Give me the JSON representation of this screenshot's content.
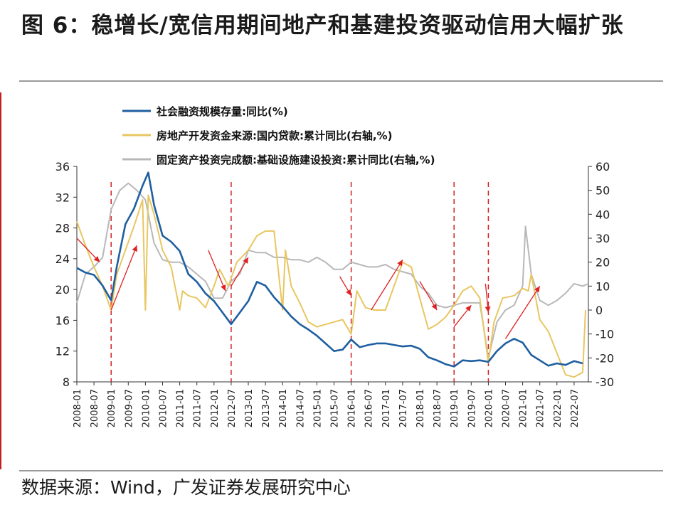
{
  "title": "图 6：稳增长/宽信用期间地产和基建投资驱动信用大幅扩张",
  "source": "数据来源：Wind，广发证券发展研究中心",
  "chart_data": {
    "type": "line",
    "x_labels": [
      "2008-01",
      "2008-07",
      "2009-01",
      "2009-07",
      "2010-01",
      "2010-07",
      "2011-01",
      "2011-07",
      "2012-01",
      "2012-07",
      "2013-01",
      "2013-07",
      "2014-01",
      "2014-07",
      "2015-01",
      "2015-07",
      "2016-01",
      "2016-07",
      "2017-01",
      "2017-07",
      "2018-01",
      "2018-07",
      "2019-01",
      "2019-07",
      "2020-01",
      "2020-07",
      "2021-01",
      "2021-07",
      "2022-01",
      "2022-07"
    ],
    "left_axis": {
      "min": 8,
      "max": 36,
      "ticks": [
        8,
        12,
        16,
        20,
        24,
        28,
        32,
        36
      ]
    },
    "right_axis": {
      "min": -30,
      "max": 60,
      "ticks": [
        -30,
        -20,
        -10,
        0,
        10,
        20,
        30,
        40,
        50,
        60
      ]
    },
    "legend_position": "top",
    "grid": false,
    "series": [
      {
        "name": "社会融资规模存量:同比(%)",
        "axis": "left",
        "color": "#1f5fa0",
        "points": [
          [
            "2008-01",
            22.8
          ],
          [
            "2008-04",
            22.2
          ],
          [
            "2008-07",
            21.9
          ],
          [
            "2008-10",
            20.5
          ],
          [
            "2009-01",
            18.6
          ],
          [
            "2009-03",
            23
          ],
          [
            "2009-06",
            28.5
          ],
          [
            "2009-09",
            30.5
          ],
          [
            "2009-12",
            33.5
          ],
          [
            "2010-02",
            35.2
          ],
          [
            "2010-04",
            31
          ],
          [
            "2010-07",
            27
          ],
          [
            "2010-10",
            26.2
          ],
          [
            "2011-01",
            25
          ],
          [
            "2011-04",
            22
          ],
          [
            "2011-07",
            21
          ],
          [
            "2011-10",
            19.5
          ],
          [
            "2012-01",
            18.5
          ],
          [
            "2012-04",
            17
          ],
          [
            "2012-07",
            15.5
          ],
          [
            "2012-10",
            17
          ],
          [
            "2013-01",
            18.5
          ],
          [
            "2013-04",
            21
          ],
          [
            "2013-07",
            20.5
          ],
          [
            "2013-10",
            19
          ],
          [
            "2014-01",
            17.8
          ],
          [
            "2014-04",
            16.5
          ],
          [
            "2014-07",
            15.5
          ],
          [
            "2014-10",
            14.8
          ],
          [
            "2015-01",
            14
          ],
          [
            "2015-04",
            13
          ],
          [
            "2015-07",
            12
          ],
          [
            "2015-10",
            12.2
          ],
          [
            "2016-01",
            13.5
          ],
          [
            "2016-04",
            12.5
          ],
          [
            "2016-07",
            12.8
          ],
          [
            "2016-10",
            13
          ],
          [
            "2017-01",
            13
          ],
          [
            "2017-04",
            12.8
          ],
          [
            "2017-07",
            12.6
          ],
          [
            "2017-10",
            12.7
          ],
          [
            "2018-01",
            12.3
          ],
          [
            "2018-04",
            11.2
          ],
          [
            "2018-07",
            10.8
          ],
          [
            "2018-10",
            10.3
          ],
          [
            "2019-01",
            10
          ],
          [
            "2019-04",
            10.8
          ],
          [
            "2019-07",
            10.7
          ],
          [
            "2019-10",
            10.8
          ],
          [
            "2020-01",
            10.6
          ],
          [
            "2020-04",
            12
          ],
          [
            "2020-07",
            13
          ],
          [
            "2020-10",
            13.6
          ],
          [
            "2021-01",
            13.1
          ],
          [
            "2021-04",
            11.5
          ],
          [
            "2021-07",
            10.8
          ],
          [
            "2021-10",
            10.1
          ],
          [
            "2022-01",
            10.4
          ],
          [
            "2022-04",
            10.2
          ],
          [
            "2022-07",
            10.7
          ],
          [
            "2022-10",
            10.4
          ]
        ]
      },
      {
        "name": "房地产开发资金来源:国内贷款:累计同比(右轴,%)",
        "axis": "right",
        "color": "#e8c660",
        "points": [
          [
            "2008-01",
            37
          ],
          [
            "2008-04",
            27
          ],
          [
            "2008-07",
            18
          ],
          [
            "2008-10",
            10
          ],
          [
            "2009-01",
            0
          ],
          [
            "2009-03",
            15
          ],
          [
            "2009-06",
            25
          ],
          [
            "2009-09",
            35
          ],
          [
            "2009-12",
            46
          ],
          [
            "2010-01",
            0
          ],
          [
            "2010-02",
            48
          ],
          [
            "2010-04",
            40
          ],
          [
            "2010-07",
            25
          ],
          [
            "2010-10",
            18
          ],
          [
            "2011-01",
            0
          ],
          [
            "2011-02",
            8
          ],
          [
            "2011-04",
            6
          ],
          [
            "2011-07",
            5
          ],
          [
            "2011-10",
            1
          ],
          [
            "2012-01",
            10
          ],
          [
            "2012-03",
            17
          ],
          [
            "2012-06",
            10
          ],
          [
            "2012-09",
            20
          ],
          [
            "2013-01",
            25
          ],
          [
            "2013-04",
            31
          ],
          [
            "2013-07",
            33
          ],
          [
            "2013-10",
            33
          ],
          [
            "2014-01",
            0
          ],
          [
            "2014-02",
            25
          ],
          [
            "2014-04",
            10
          ],
          [
            "2014-07",
            3
          ],
          [
            "2014-10",
            -5
          ],
          [
            "2015-01",
            -7
          ],
          [
            "2015-04",
            -6
          ],
          [
            "2015-07",
            -5
          ],
          [
            "2015-10",
            -4
          ],
          [
            "2016-01",
            -10
          ],
          [
            "2016-03",
            8
          ],
          [
            "2016-06",
            1
          ],
          [
            "2016-09",
            0
          ],
          [
            "2017-01",
            0
          ],
          [
            "2017-04",
            10
          ],
          [
            "2017-07",
            20
          ],
          [
            "2017-10",
            18
          ],
          [
            "2018-01",
            5
          ],
          [
            "2018-04",
            -8
          ],
          [
            "2018-07",
            -6
          ],
          [
            "2018-10",
            -3
          ],
          [
            "2019-01",
            2
          ],
          [
            "2019-04",
            8
          ],
          [
            "2019-07",
            10
          ],
          [
            "2019-10",
            5
          ],
          [
            "2020-01",
            -22
          ],
          [
            "2020-03",
            -5
          ],
          [
            "2020-06",
            5
          ],
          [
            "2020-10",
            6
          ],
          [
            "2021-01",
            9
          ],
          [
            "2021-03",
            8
          ],
          [
            "2021-04",
            15
          ],
          [
            "2021-07",
            -4
          ],
          [
            "2021-10",
            -9
          ],
          [
            "2022-01",
            -18
          ],
          [
            "2022-04",
            -27
          ],
          [
            "2022-07",
            -28
          ],
          [
            "2022-10",
            -26
          ],
          [
            "2022-11",
            0
          ]
        ]
      },
      {
        "name": "固定资产投资完成额:基础设施建设投资:累计同比(右轴,%)",
        "axis": "right",
        "color": "#b8b8b8",
        "points": [
          [
            "2008-01",
            3
          ],
          [
            "2008-04",
            15
          ],
          [
            "2008-07",
            18
          ],
          [
            "2008-10",
            22
          ],
          [
            "2009-01",
            42
          ],
          [
            "2009-04",
            50
          ],
          [
            "2009-07",
            53
          ],
          [
            "2009-10",
            50
          ],
          [
            "2010-01",
            46
          ],
          [
            "2010-04",
            28
          ],
          [
            "2010-07",
            21
          ],
          [
            "2010-10",
            20
          ],
          [
            "2011-01",
            20
          ],
          [
            "2011-04",
            18
          ],
          [
            "2011-07",
            15
          ],
          [
            "2011-10",
            12
          ],
          [
            "2012-01",
            5
          ],
          [
            "2012-04",
            5
          ],
          [
            "2012-07",
            12
          ],
          [
            "2012-10",
            15
          ],
          [
            "2013-01",
            25
          ],
          [
            "2013-04",
            24
          ],
          [
            "2013-07",
            24
          ],
          [
            "2013-10",
            22
          ],
          [
            "2014-01",
            22
          ],
          [
            "2014-04",
            21
          ],
          [
            "2014-07",
            21
          ],
          [
            "2014-10",
            20
          ],
          [
            "2015-01",
            22
          ],
          [
            "2015-04",
            20
          ],
          [
            "2015-07",
            17
          ],
          [
            "2015-10",
            17
          ],
          [
            "2016-01",
            20
          ],
          [
            "2016-04",
            19
          ],
          [
            "2016-07",
            18
          ],
          [
            "2016-10",
            18
          ],
          [
            "2017-01",
            19
          ],
          [
            "2017-04",
            17
          ],
          [
            "2017-07",
            16
          ],
          [
            "2017-10",
            15
          ],
          [
            "2018-01",
            10
          ],
          [
            "2018-04",
            7
          ],
          [
            "2018-07",
            2
          ],
          [
            "2018-10",
            1
          ],
          [
            "2019-01",
            2
          ],
          [
            "2019-04",
            3
          ],
          [
            "2019-07",
            3
          ],
          [
            "2019-10",
            3
          ],
          [
            "2020-01",
            -20
          ],
          [
            "2020-04",
            -5
          ],
          [
            "2020-07",
            0
          ],
          [
            "2020-10",
            2
          ],
          [
            "2021-01",
            10
          ],
          [
            "2021-02",
            35
          ],
          [
            "2021-04",
            15
          ],
          [
            "2021-07",
            4
          ],
          [
            "2021-10",
            2
          ],
          [
            "2022-01",
            4
          ],
          [
            "2022-04",
            7
          ],
          [
            "2022-07",
            11
          ],
          [
            "2022-10",
            10
          ],
          [
            "2022-12",
            11
          ]
        ]
      }
    ],
    "annotations": {
      "vertical_lines_at": [
        "2009-01",
        "2012-07",
        "2016-01",
        "2019-01",
        "2020-01"
      ],
      "vertical_line_color": "#d02020",
      "arrow_color": "#e02020",
      "arrows": [
        {
          "from": [
            "2008-01",
            30
          ],
          "to": [
            "2008-09",
            20
          ]
        },
        {
          "from": [
            "2009-01",
            0
          ],
          "to": [
            "2009-10",
            27
          ]
        },
        {
          "from": [
            "2011-11",
            25
          ],
          "to": [
            "2012-05",
            8
          ]
        },
        {
          "from": [
            "2012-07",
            10
          ],
          "to": [
            "2013-01",
            22
          ]
        },
        {
          "from": [
            "2015-09",
            14
          ],
          "to": [
            "2016-01",
            6
          ]
        },
        {
          "from": [
            "2016-08",
            0
          ],
          "to": [
            "2017-07",
            21
          ]
        },
        {
          "from": [
            "2018-01",
            12
          ],
          "to": [
            "2018-07",
            0
          ]
        },
        {
          "from": [
            "2019-01",
            -7
          ],
          "to": [
            "2019-07",
            2
          ]
        },
        {
          "from": [
            "2019-12",
            11
          ],
          "to": [
            "2020-01",
            -1
          ]
        },
        {
          "from": [
            "2020-07",
            -12
          ],
          "to": [
            "2021-07",
            10
          ]
        }
      ]
    }
  }
}
